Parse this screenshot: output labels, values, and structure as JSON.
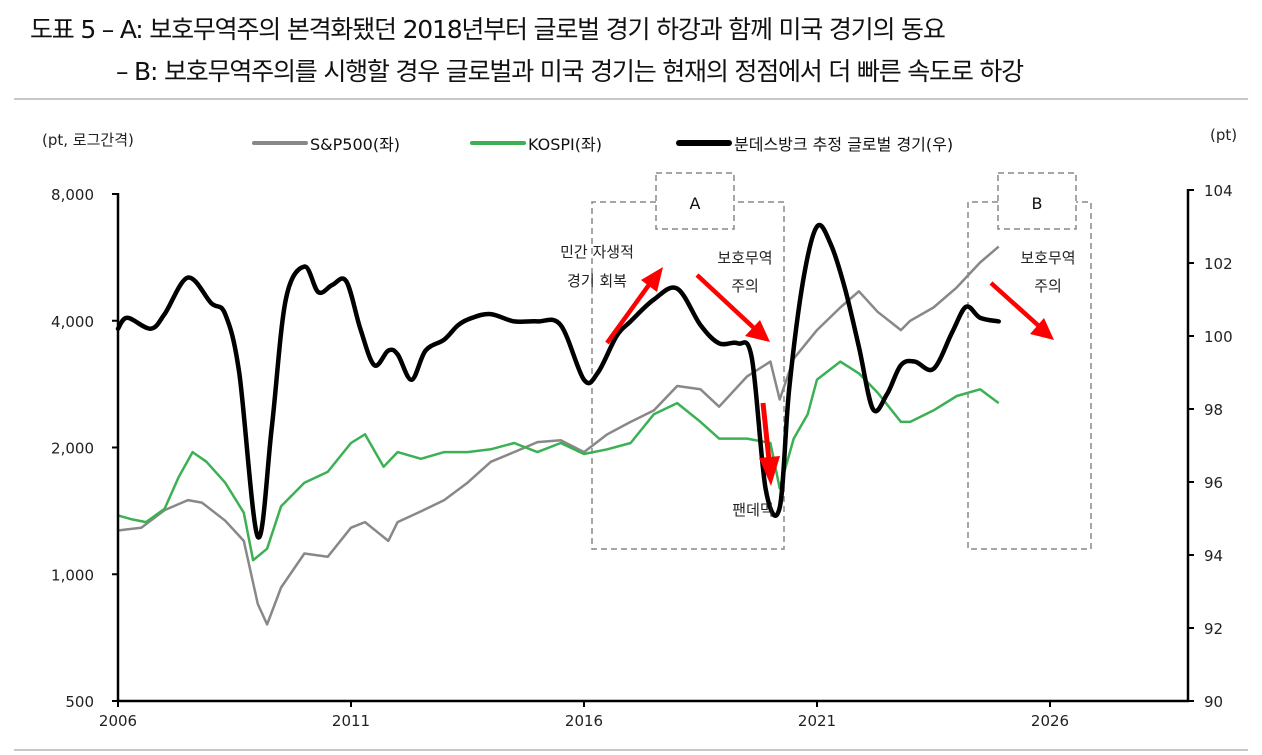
{
  "title": {
    "line1": "도표 5 – A: 보호무역주의 본격화됐던 2018년부터 글로벌 경기 하강과 함께 미국 경기의 동요",
    "line2": "– B: 보호무역주의를 시행할 경우 글로벌과 미국 경기는 현재의 정점에서 더 빠른 속도로 하강"
  },
  "axes": {
    "left_unit": "(pt, 로그간격)",
    "right_unit": "(pt)"
  },
  "legend": [
    {
      "label": "S&P500(좌)",
      "color": "#888888"
    },
    {
      "label": "KOSPI(좌)",
      "color": "#3cb054"
    },
    {
      "label": "분데스방크 추정 글로벌 경기(우)",
      "color": "#000000"
    }
  ],
  "annotations": {
    "box_a_label": "A",
    "box_b_label": "B",
    "recovery_line1": "민간 자생적",
    "recovery_line2": "경기 회복",
    "protect_a_line1": "보호무역",
    "protect_a_line2": "주의",
    "pandemic": "팬데믹",
    "protect_b_line1": "보호무역",
    "protect_b_line2": "주의"
  },
  "colors": {
    "sp500": "#888888",
    "kospi": "#3cb054",
    "global": "#000000",
    "arrow": "#ff0000",
    "box": "#888888"
  },
  "chart_data": {
    "type": "line",
    "title": "A: 보호무역주의 본격화됐던 2018년부터 글로벌 경기 하강과 함께 미국 경기의 동요 / B: 보호무역주의를 시행할 경우 글로벌과 미국 경기는 현재의 정점에서 더 빠른 속도로 하강",
    "xlabel": "",
    "ylabel_left": "(pt, 로그간격)",
    "ylabel_right": "(pt)",
    "x_ticks": [
      "2006",
      "2011",
      "2016",
      "2021",
      "2026"
    ],
    "xlim": [
      2006,
      2029.5
    ],
    "y_left": {
      "scale": "log",
      "ticks": [
        "500",
        "1,000",
        "2,000",
        "4,000",
        "8,000"
      ],
      "ylim": [
        500,
        8000
      ]
    },
    "y_right": {
      "scale": "linear",
      "ticks": [
        "90",
        "92",
        "94",
        "96",
        "98",
        "100",
        "102",
        "104"
      ],
      "ylim": [
        90,
        104
      ]
    },
    "legend_position": "top",
    "grid": false,
    "series": [
      {
        "name": "S&P500(좌)",
        "axis": "left",
        "x": [
          2006.0,
          2006.5,
          2007.0,
          2007.5,
          2007.8,
          2008.3,
          2008.7,
          2009.0,
          2009.2,
          2009.5,
          2010.0,
          2010.5,
          2011.0,
          2011.3,
          2011.8,
          2012.0,
          2012.5,
          2013.0,
          2013.5,
          2014.0,
          2014.5,
          2015.0,
          2015.5,
          2016.0,
          2016.5,
          2017.0,
          2017.5,
          2018.0,
          2018.5,
          2018.9,
          2019.5,
          2020.0,
          2020.2,
          2020.5,
          2021.0,
          2021.5,
          2021.9,
          2022.3,
          2022.8,
          2023.0,
          2023.5,
          2024.0,
          2024.5,
          2024.9
        ],
        "values": [
          1270,
          1290,
          1420,
          1500,
          1480,
          1340,
          1200,
          850,
          760,
          930,
          1120,
          1100,
          1290,
          1330,
          1200,
          1330,
          1410,
          1500,
          1650,
          1850,
          1950,
          2060,
          2080,
          1950,
          2150,
          2300,
          2450,
          2800,
          2750,
          2500,
          2950,
          3200,
          2600,
          3250,
          3800,
          4300,
          4700,
          4200,
          3800,
          4000,
          4300,
          4800,
          5500,
          6000
        ]
      },
      {
        "name": "KOSPI(좌)",
        "axis": "left",
        "x": [
          2006.0,
          2006.3,
          2006.6,
          2007.0,
          2007.3,
          2007.6,
          2007.9,
          2008.3,
          2008.7,
          2008.9,
          2009.2,
          2009.5,
          2010.0,
          2010.5,
          2011.0,
          2011.3,
          2011.7,
          2012.0,
          2012.5,
          2013.0,
          2013.5,
          2014.0,
          2014.5,
          2015.0,
          2015.5,
          2016.0,
          2016.5,
          2017.0,
          2017.5,
          2018.0,
          2018.5,
          2018.9,
          2019.5,
          2020.0,
          2020.2,
          2020.5,
          2020.8,
          2021.0,
          2021.5,
          2021.9,
          2022.3,
          2022.8,
          2023.0,
          2023.5,
          2024.0,
          2024.5,
          2024.9
        ],
        "values": [
          1380,
          1350,
          1330,
          1430,
          1700,
          1950,
          1850,
          1650,
          1400,
          1080,
          1150,
          1450,
          1650,
          1750,
          2050,
          2150,
          1800,
          1950,
          1880,
          1950,
          1950,
          1980,
          2050,
          1950,
          2050,
          1930,
          1980,
          2050,
          2400,
          2550,
          2300,
          2100,
          2100,
          2050,
          1600,
          2100,
          2400,
          2900,
          3200,
          3000,
          2700,
          2300,
          2300,
          2450,
          2650,
          2750,
          2550
        ]
      },
      {
        "name": "분데스방크 추정 글로벌 경기(우)",
        "axis": "right",
        "x": [
          2006.0,
          2006.2,
          2006.7,
          2007.0,
          2007.5,
          2008.0,
          2008.3,
          2008.6,
          2009.0,
          2009.3,
          2009.6,
          2010.0,
          2010.3,
          2010.6,
          2010.9,
          2011.2,
          2011.5,
          2011.8,
          2012.0,
          2012.3,
          2012.6,
          2013.0,
          2013.3,
          2013.6,
          2014.0,
          2014.5,
          2015.0,
          2015.5,
          2016.0,
          2016.3,
          2016.7,
          2017.0,
          2017.5,
          2018.0,
          2018.5,
          2018.9,
          2019.3,
          2019.6,
          2019.9,
          2020.2,
          2020.4,
          2020.7,
          2021.0,
          2021.3,
          2021.6,
          2021.9,
          2022.2,
          2022.5,
          2022.8,
          2023.1,
          2023.5,
          2023.9,
          2024.2,
          2024.5,
          2024.9
        ],
        "values": [
          100.2,
          100.5,
          100.2,
          100.6,
          101.6,
          100.9,
          100.6,
          99.0,
          94.5,
          97.5,
          101.0,
          101.9,
          101.2,
          101.4,
          101.5,
          100.2,
          99.2,
          99.6,
          99.5,
          98.8,
          99.6,
          99.9,
          100.3,
          100.5,
          100.6,
          100.4,
          100.4,
          100.3,
          98.8,
          99.0,
          100.0,
          100.4,
          101.0,
          101.3,
          100.3,
          99.8,
          99.8,
          99.4,
          95.8,
          95.3,
          98.5,
          101.5,
          103.0,
          102.5,
          101.3,
          99.7,
          98.0,
          98.4,
          99.2,
          99.3,
          99.1,
          100.1,
          100.8,
          100.5,
          100.4
        ]
      }
    ],
    "annotations": [
      {
        "label": "A",
        "type": "dashed_box",
        "x_range": [
          2016.2,
          2020.7
        ]
      },
      {
        "label": "B",
        "type": "dashed_box",
        "x_range": [
          2024.3,
          2026.9
        ]
      },
      {
        "text": "민간 자생적 경기 회복",
        "arrow": "up-right"
      },
      {
        "text": "보호무역 주의",
        "arrow": "down-right",
        "box": "A"
      },
      {
        "text": "팬데믹",
        "arrow": "down"
      },
      {
        "text": "보호무역 주의",
        "arrow": "down-right",
        "box": "B"
      }
    ]
  }
}
